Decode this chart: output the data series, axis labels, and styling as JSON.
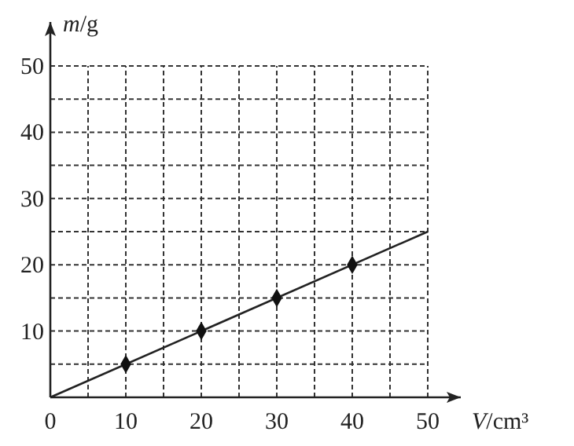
{
  "chart_data": {
    "type": "scatter",
    "xlabel": "V/cm³",
    "ylabel": "m/g",
    "xlim": [
      0,
      50
    ],
    "ylim": [
      0,
      50
    ],
    "xticks": [
      0,
      {
        "value": 5,
        "label": null
      },
      10,
      {
        "value": 15,
        "label": null
      },
      20,
      {
        "value": 25,
        "label": null
      },
      30,
      {
        "value": 35,
        "label": null
      },
      40,
      {
        "value": 45,
        "label": null
      },
      50
    ],
    "yticks": [
      {
        "value": 5,
        "label": null
      },
      10,
      {
        "value": 15,
        "label": null
      },
      20,
      {
        "value": 25,
        "label": null
      },
      30,
      {
        "value": 35,
        "label": null
      },
      40,
      {
        "value": 45,
        "label": null
      },
      50
    ],
    "grid": true,
    "series": [
      {
        "type": "line",
        "color": "#222222",
        "x": [
          0,
          50
        ],
        "values": [
          0,
          25
        ],
        "marker": "none",
        "line_style": "solid"
      },
      {
        "color": "#111111",
        "x": [
          10,
          20,
          30,
          40
        ],
        "values": [
          5,
          10,
          15,
          20
        ],
        "marker": "diamond"
      }
    ]
  }
}
